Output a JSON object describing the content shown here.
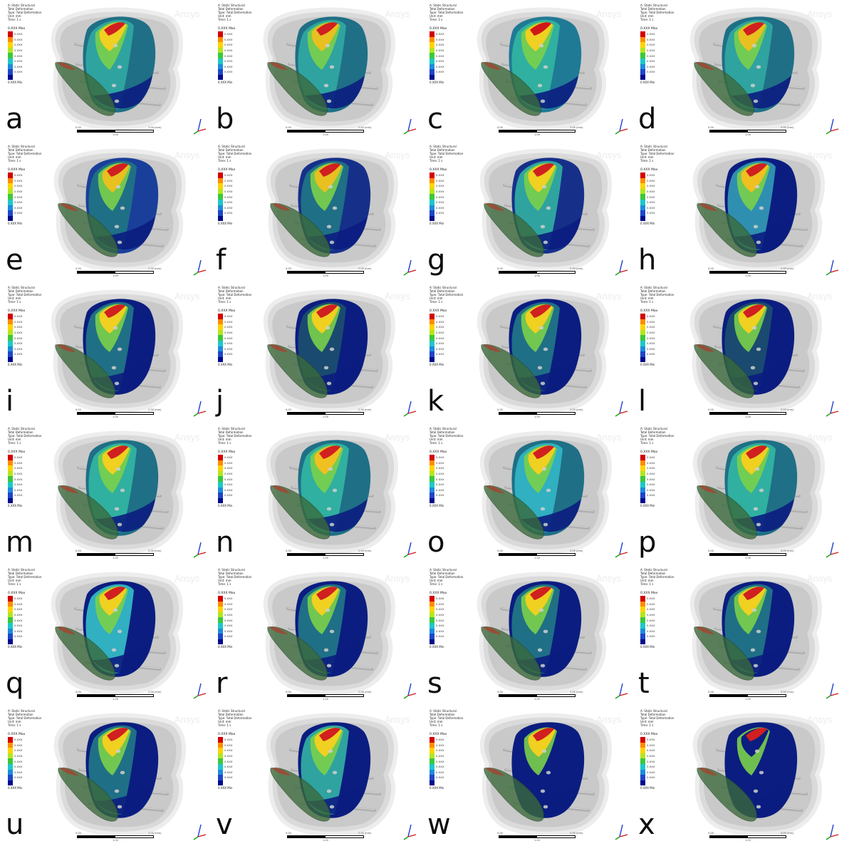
{
  "figure": {
    "watermark": "Ansys",
    "legend_header": [
      "A: Static Structural",
      "Total Deformation",
      "Type: Total Deformation",
      "Unit: mm",
      "Time: 1 s"
    ],
    "legend_ticks": [
      "0.XXX",
      "0.XXX",
      "0.XXX",
      "0.XXX",
      "0.XXX",
      "0.XXX",
      "0.XXX",
      "0.XXX"
    ],
    "scale_left": "0.00",
    "scale_mid": "1.00",
    "scale_right": "2.00 (mm)",
    "legend_colors": [
      "#d40000",
      "#ff8c00",
      "#ffd400",
      "#b4e61e",
      "#3cc83c",
      "#1ec8c8",
      "#1e8cdc",
      "#1e46c8",
      "#000a8c"
    ],
    "panels": [
      {
        "label": "a",
        "max": "0.XXX Max",
        "min": "0.XXX Min"
      },
      {
        "label": "b",
        "max": "0.XXX Max",
        "min": "0.XXX Min"
      },
      {
        "label": "c",
        "max": "0.XXX Max",
        "min": "0.XXX Min"
      },
      {
        "label": "d",
        "max": "0.XXX Max",
        "min": "0.XXX Min"
      },
      {
        "label": "e",
        "max": "0.XXX Max",
        "min": "0.XXX Min"
      },
      {
        "label": "f",
        "max": "0.XXX Max",
        "min": "0.XXX Min"
      },
      {
        "label": "g",
        "max": "0.XXX Max",
        "min": "0.XXX Min"
      },
      {
        "label": "h",
        "max": "0.XXX Max",
        "min": "0.XXX Min"
      },
      {
        "label": "i",
        "max": "0.XXX Max",
        "min": "0.XXX Min"
      },
      {
        "label": "j",
        "max": "0.XXX Max",
        "min": "0.XXX Min"
      },
      {
        "label": "k",
        "max": "0.XXX Max",
        "min": "0.XXX Min"
      },
      {
        "label": "l",
        "max": "0.XXX Max",
        "min": "0.XXX Min"
      },
      {
        "label": "m",
        "max": "0.XXX Max",
        "min": "0.XXX Min"
      },
      {
        "label": "n",
        "max": "0.XXX Max",
        "min": "0.XXX Min"
      },
      {
        "label": "o",
        "max": "0.XXX Max",
        "min": "0.XXX Min"
      },
      {
        "label": "p",
        "max": "0.XXX Max",
        "min": "0.XXX Min"
      },
      {
        "label": "q",
        "max": "0.XXX Max",
        "min": "0.XXX Min"
      },
      {
        "label": "r",
        "max": "0.XXX Max",
        "min": "0.XXX Min"
      },
      {
        "label": "s",
        "max": "0.XXX Max",
        "min": "0.XXX Min"
      },
      {
        "label": "t",
        "max": "0.XXX Max",
        "min": "0.XXX Min"
      },
      {
        "label": "u",
        "max": "0.XXX Max",
        "min": "0.XXX Min"
      },
      {
        "label": "v",
        "max": "0.XXX Max",
        "min": "0.XXX Min"
      },
      {
        "label": "w",
        "max": "0.XXX Max",
        "min": "0.XXX Min"
      },
      {
        "label": "x",
        "max": "0.XXX Max",
        "min": "0.XXX Min"
      }
    ]
  }
}
